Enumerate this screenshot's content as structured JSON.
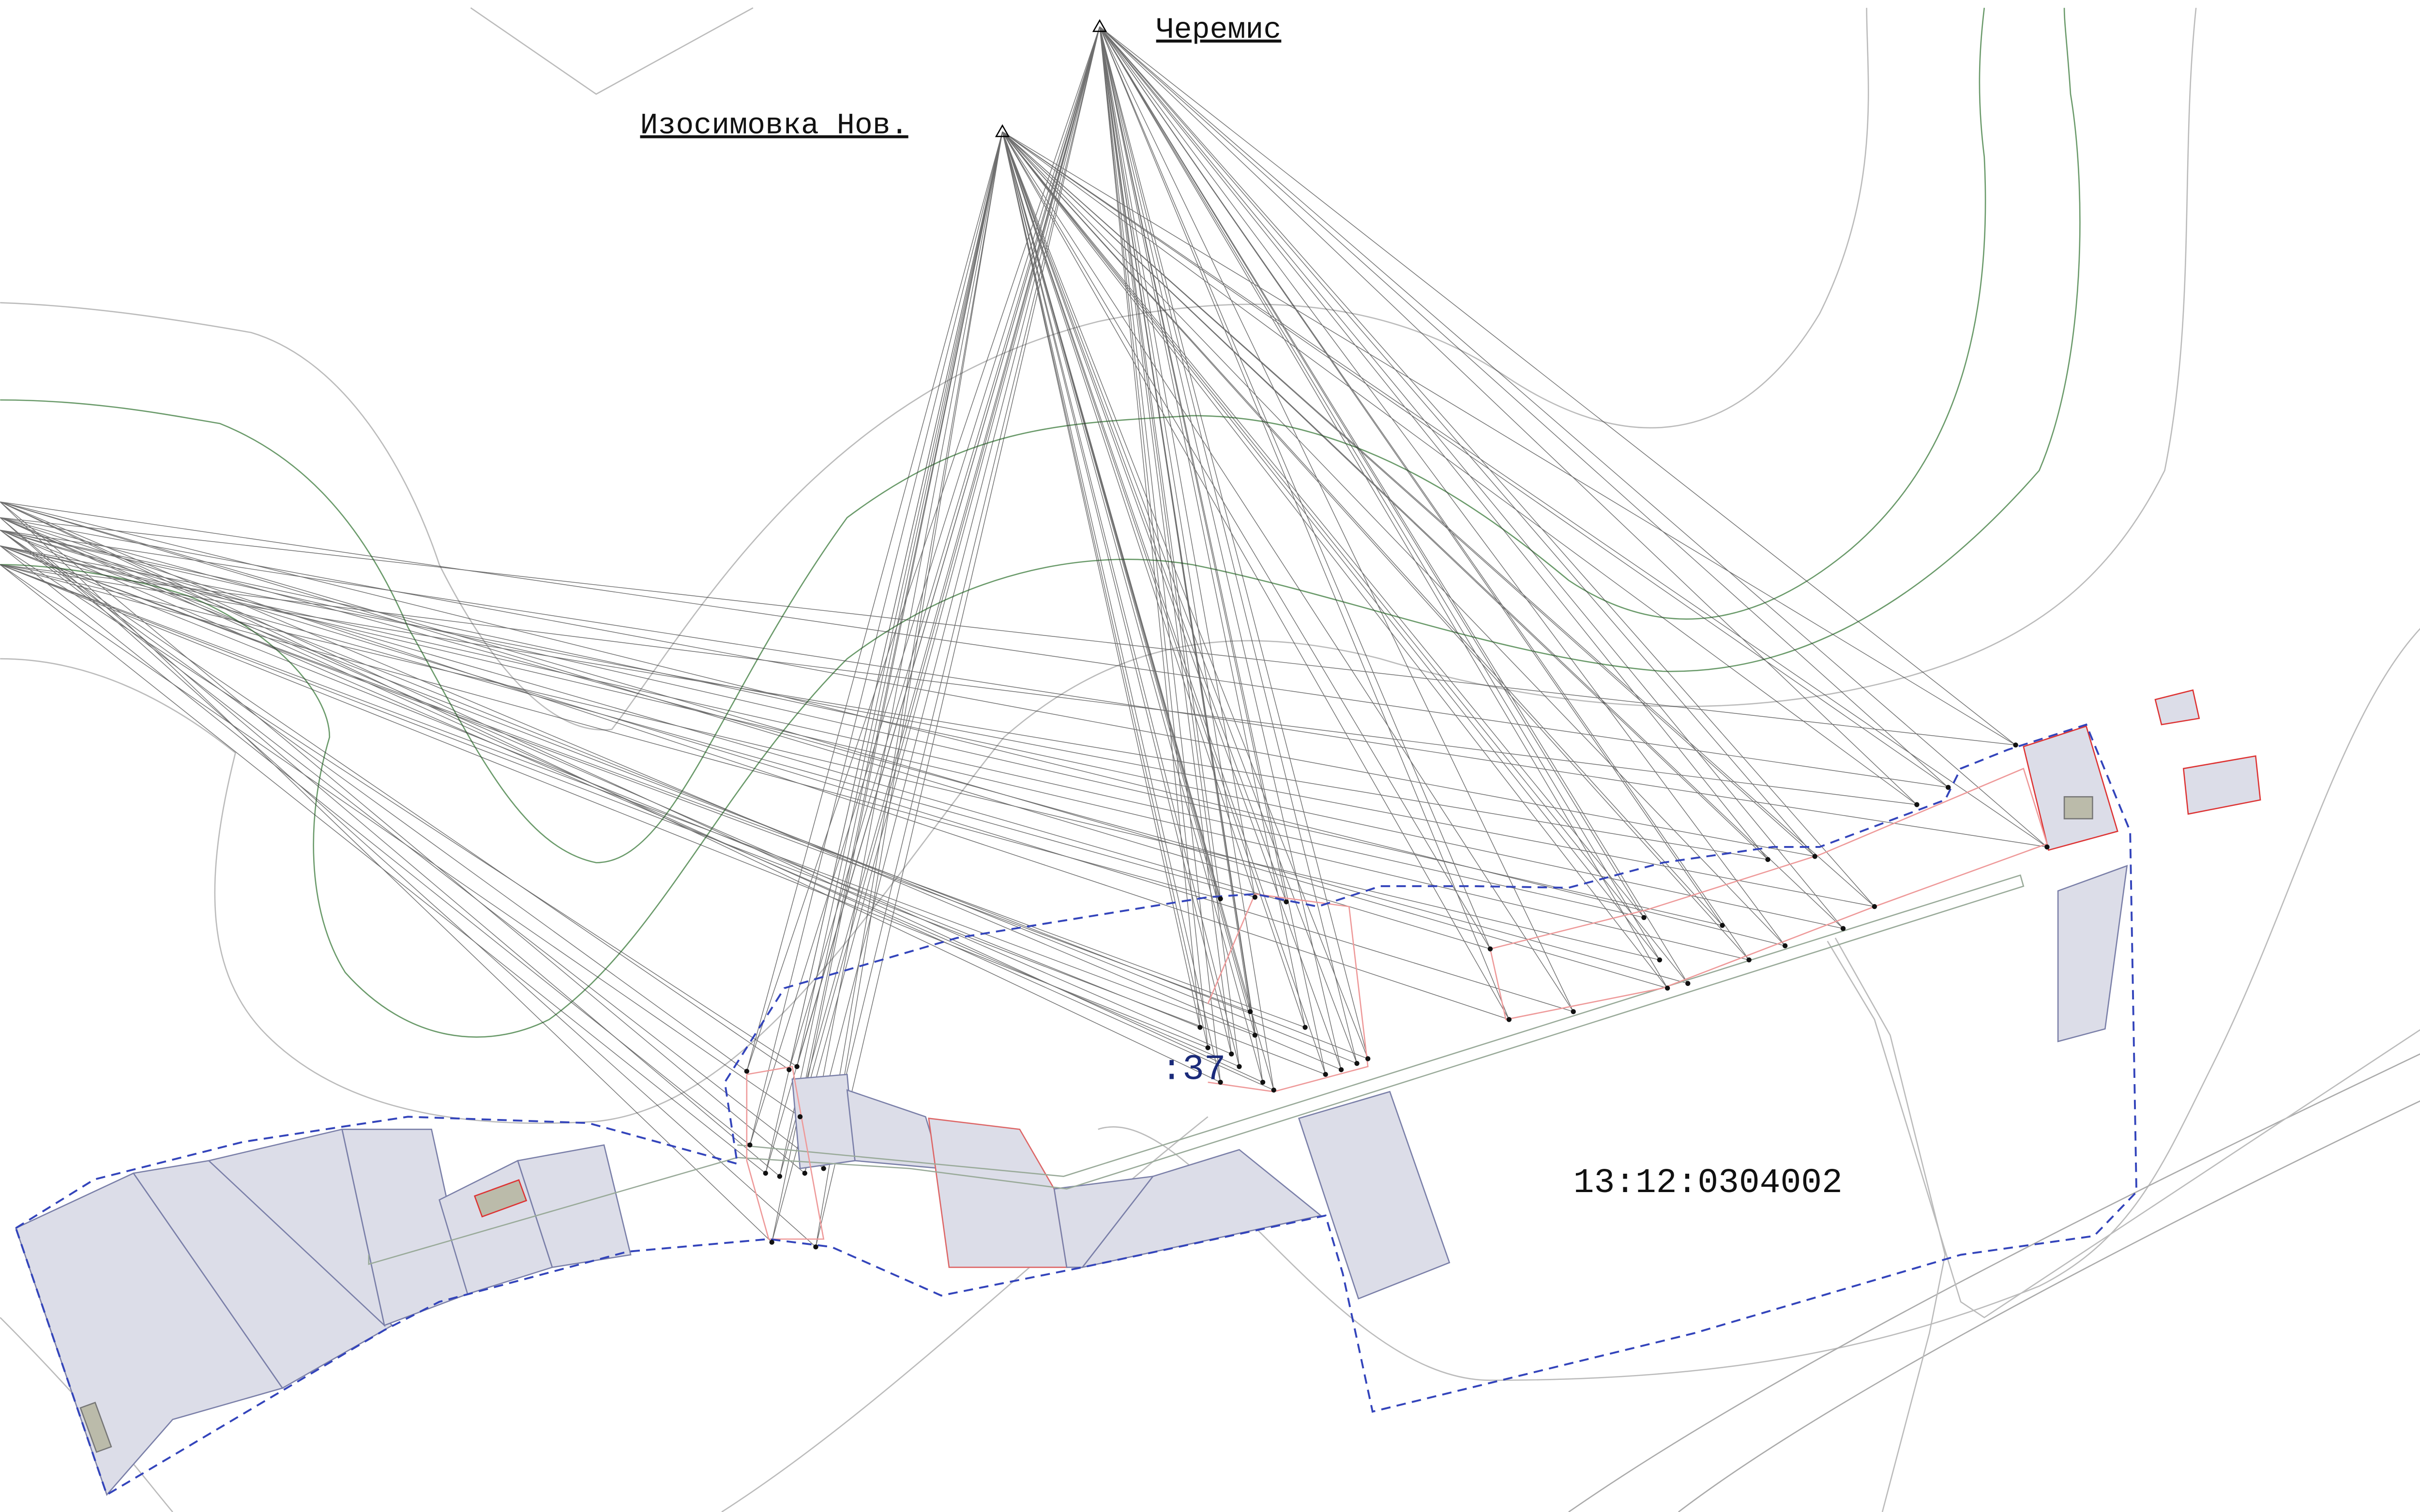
{
  "points": [
    {
      "label": "Черемис"
    },
    {
      "label": "Изосимовка Нов."
    }
  ],
  "labels": {
    "parcel": ":37",
    "quarter": "13:12:0304002"
  }
}
